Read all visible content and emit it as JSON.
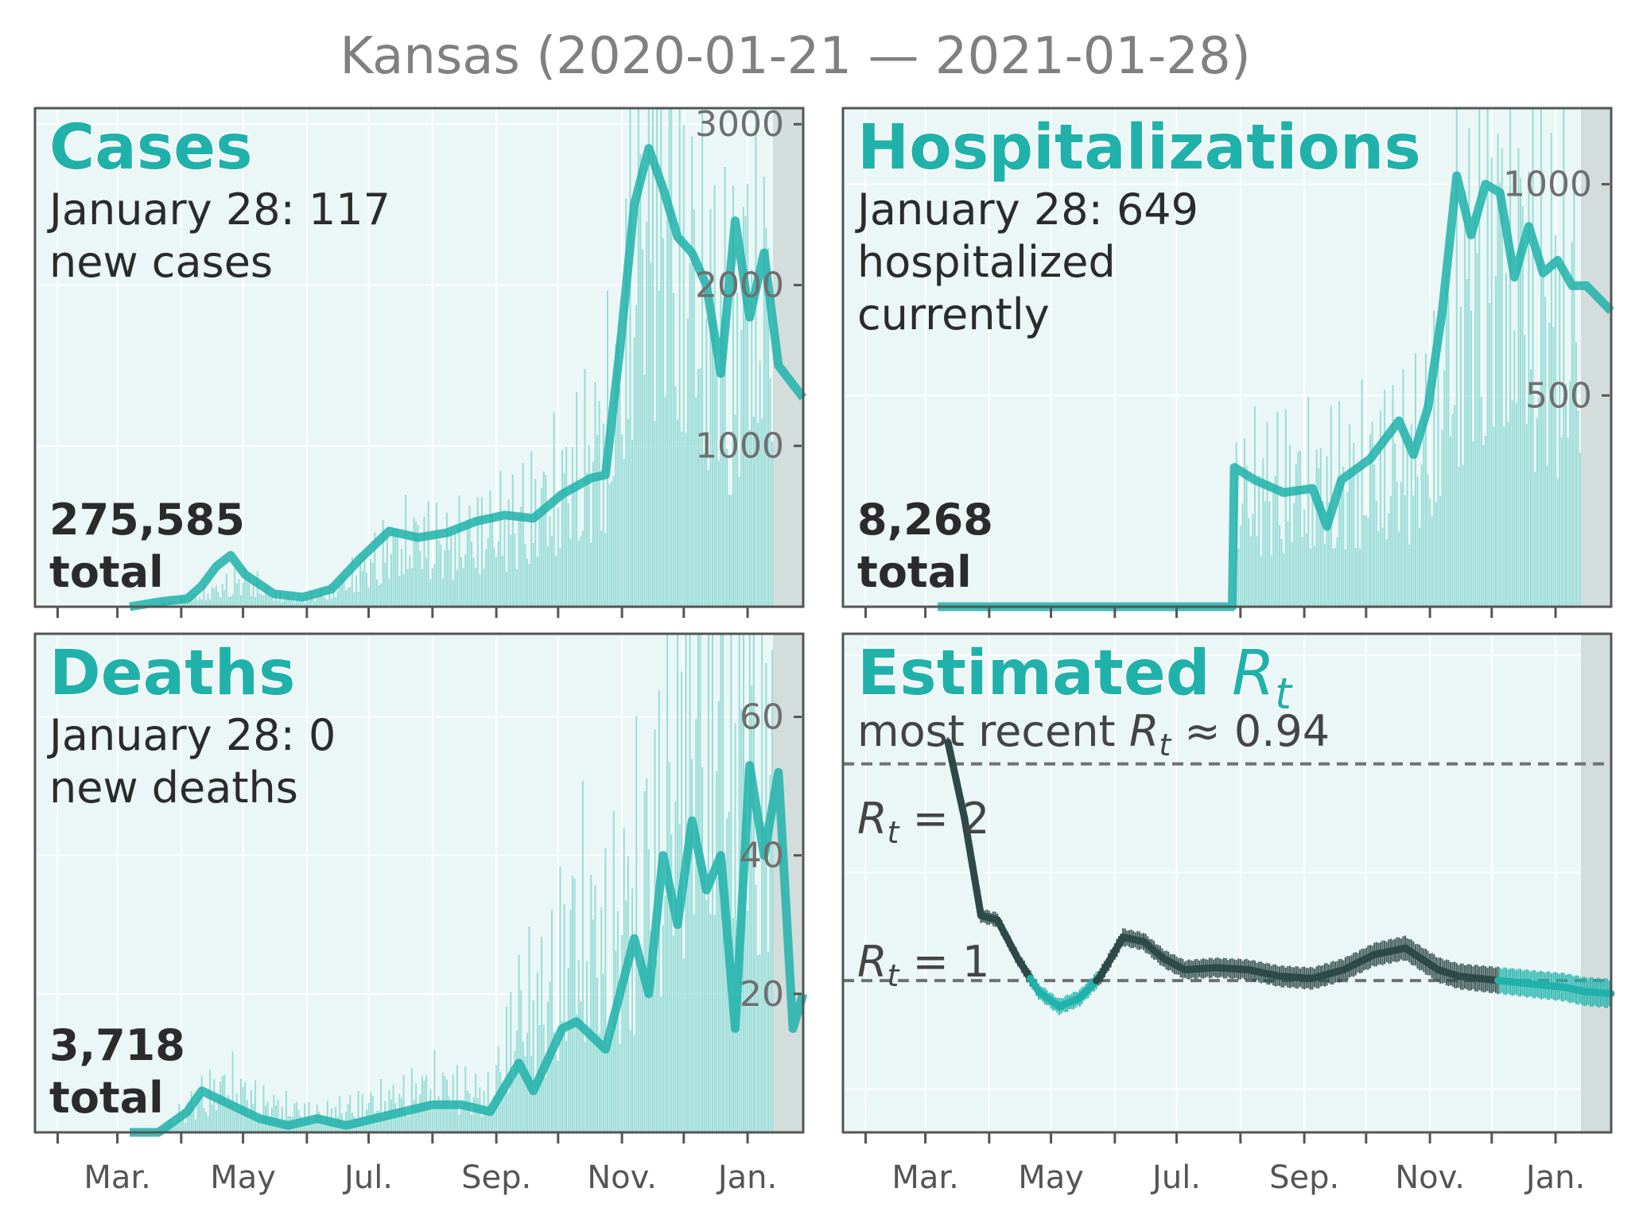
{
  "title": "Kansas (2020-01-21 — 2021-01-28)",
  "colors": {
    "accent": "#20b2aa",
    "bar": "#7fd3cc",
    "panel_bg": "#eaf7f6",
    "grid": "#ffffff",
    "frame": "#555555",
    "shade": "#d3dddb",
    "rt_dark": "#2e4a48",
    "ref_line": "#707070"
  },
  "x_ticks": [
    "Mar.",
    "May",
    "Jul.",
    "Sep.",
    "Nov.",
    "Jan."
  ],
  "panels": {
    "cases": {
      "title": "Cases",
      "date_line": "January 28: 117",
      "sub_line": "new cases",
      "total_value": "275,585",
      "total_label": "total"
    },
    "hosp": {
      "title": "Hospitalizations",
      "date_line": "January 28: 649",
      "sub_line1": "hospitalized",
      "sub_line2": "currently",
      "total_value": "8,268",
      "total_label": "total"
    },
    "deaths": {
      "title": "Deaths",
      "date_line": "January 28: 0",
      "sub_line": "new deaths",
      "total_value": "3,718",
      "total_label": "total"
    },
    "rt": {
      "title": "Estimated",
      "title_symbol": "R",
      "title_subscript": "t",
      "sub_prefix": "most recent ",
      "sub_symbol": "R",
      "sub_subscript": "t",
      "sub_suffix": " ≈ 0.94",
      "ref2_symbol": "R",
      "ref2_subscript": "t",
      "ref2_suffix": " = 2",
      "ref1_symbol": "R",
      "ref1_subscript": "t",
      "ref1_suffix": " = 1"
    }
  },
  "chart_data": [
    {
      "type": "bar",
      "panel": "cases",
      "title": "Cases",
      "x_range": [
        "2020-01-21",
        "2021-01-28"
      ],
      "ylim": [
        0,
        3100
      ],
      "y_ticks": [
        "1000",
        "2000",
        "3000"
      ],
      "y_tick_values": [
        1000,
        2000,
        3000
      ],
      "series": [
        {
          "kind": "daily_bars",
          "x": [
            "2020-03-07",
            "2020-03-21",
            "2020-04-04",
            "2020-04-18",
            "2020-05-02",
            "2020-05-16",
            "2020-05-30",
            "2020-06-13",
            "2020-06-27",
            "2020-07-11",
            "2020-07-25",
            "2020-08-08",
            "2020-08-22",
            "2020-09-05",
            "2020-09-19",
            "2020-10-03",
            "2020-10-17",
            "2020-10-31",
            "2020-11-07",
            "2020-11-14",
            "2020-11-21",
            "2020-11-28",
            "2020-12-05",
            "2020-12-12",
            "2020-12-19",
            "2020-12-26",
            "2021-01-02",
            "2021-01-09",
            "2021-01-16",
            "2021-01-23",
            "2021-01-28"
          ],
          "y": [
            0,
            20,
            60,
            120,
            200,
            80,
            60,
            110,
            250,
            420,
            500,
            450,
            520,
            600,
            700,
            850,
            1100,
            1500,
            2800,
            3200,
            3400,
            2600,
            2400,
            2200,
            2100,
            1800,
            2600,
            2300,
            1900,
            1600,
            117
          ]
        },
        {
          "kind": "7-day average",
          "x": [
            "2020-03-07",
            "2020-03-21",
            "2020-04-04",
            "2020-04-11",
            "2020-04-18",
            "2020-04-25",
            "2020-05-02",
            "2020-05-16",
            "2020-05-30",
            "2020-06-13",
            "2020-06-27",
            "2020-07-11",
            "2020-07-25",
            "2020-08-08",
            "2020-08-22",
            "2020-09-05",
            "2020-09-19",
            "2020-10-03",
            "2020-10-17",
            "2020-10-24",
            "2020-10-31",
            "2020-11-07",
            "2020-11-14",
            "2020-11-21",
            "2020-11-28",
            "2020-12-05",
            "2020-12-12",
            "2020-12-19",
            "2020-12-26",
            "2021-01-02",
            "2021-01-09",
            "2021-01-16",
            "2021-01-28"
          ],
          "y": [
            0,
            30,
            50,
            130,
            250,
            320,
            200,
            80,
            60,
            110,
            300,
            470,
            430,
            460,
            530,
            570,
            550,
            700,
            800,
            820,
            1600,
            2500,
            2850,
            2600,
            2300,
            2200,
            2000,
            1450,
            2400,
            1800,
            2200,
            1500,
            1300
          ]
        }
      ]
    },
    {
      "type": "bar",
      "panel": "hospitalizations",
      "title": "Hospitalizations",
      "x_range": [
        "2020-01-21",
        "2021-01-28"
      ],
      "ylim": [
        0,
        1180
      ],
      "y_ticks": [
        "500",
        "1000"
      ],
      "y_tick_values": [
        500,
        1000
      ],
      "series": [
        {
          "kind": "daily_bars",
          "x": [
            "2020-07-29",
            "2020-08-08",
            "2020-08-22",
            "2020-09-05",
            "2020-09-19",
            "2020-10-03",
            "2020-10-17",
            "2020-10-31",
            "2020-11-07",
            "2020-11-14",
            "2020-11-21",
            "2020-11-28",
            "2020-12-05",
            "2020-12-12",
            "2020-12-19",
            "2020-12-26",
            "2021-01-02",
            "2021-01-09",
            "2021-01-16",
            "2021-01-28"
          ],
          "y": [
            300,
            330,
            340,
            330,
            350,
            370,
            400,
            460,
            600,
            800,
            950,
            1050,
            1000,
            980,
            900,
            880,
            850,
            800,
            760,
            649
          ]
        },
        {
          "kind": "7-day average",
          "x": [
            "2020-03-07",
            "2020-07-28",
            "2020-07-29",
            "2020-08-08",
            "2020-08-22",
            "2020-09-05",
            "2020-09-12",
            "2020-09-19",
            "2020-10-03",
            "2020-10-17",
            "2020-10-24",
            "2020-10-31",
            "2020-11-07",
            "2020-11-14",
            "2020-11-21",
            "2020-11-28",
            "2020-12-05",
            "2020-12-12",
            "2020-12-19",
            "2020-12-26",
            "2021-01-02",
            "2021-01-09",
            "2021-01-16",
            "2021-01-28"
          ],
          "y": [
            0,
            0,
            330,
            300,
            270,
            280,
            190,
            300,
            350,
            440,
            360,
            470,
            700,
            1020,
            880,
            1000,
            980,
            780,
            900,
            790,
            820,
            760,
            760,
            700
          ]
        }
      ]
    },
    {
      "type": "bar",
      "panel": "deaths",
      "title": "Deaths",
      "x_range": [
        "2020-01-21",
        "2021-01-28"
      ],
      "ylim": [
        0,
        72
      ],
      "y_ticks": [
        "20",
        "40",
        "60"
      ],
      "y_tick_values": [
        20,
        40,
        60
      ],
      "series": [
        {
          "kind": "daily_bars",
          "x": [
            "2020-03-21",
            "2020-04-11",
            "2020-04-25",
            "2020-05-09",
            "2020-05-23",
            "2020-06-06",
            "2020-06-20",
            "2020-07-04",
            "2020-07-18",
            "2020-08-01",
            "2020-08-15",
            "2020-08-29",
            "2020-09-12",
            "2020-09-26",
            "2020-10-10",
            "2020-10-24",
            "2020-11-07",
            "2020-11-21",
            "2020-12-05",
            "2020-12-19",
            "2021-01-02",
            "2021-01-16",
            "2021-01-28"
          ],
          "y": [
            0,
            6,
            8,
            5,
            4,
            3,
            4,
            5,
            6,
            8,
            7,
            6,
            20,
            22,
            35,
            30,
            40,
            50,
            80,
            70,
            75,
            60,
            0
          ]
        },
        {
          "kind": "7-day average",
          "x": [
            "2020-03-07",
            "2020-03-21",
            "2020-04-04",
            "2020-04-11",
            "2020-04-25",
            "2020-05-09",
            "2020-05-23",
            "2020-06-06",
            "2020-06-20",
            "2020-07-04",
            "2020-07-18",
            "2020-08-01",
            "2020-08-15",
            "2020-08-29",
            "2020-09-12",
            "2020-09-19",
            "2020-10-03",
            "2020-10-10",
            "2020-10-24",
            "2020-10-31",
            "2020-11-07",
            "2020-11-14",
            "2020-11-21",
            "2020-11-28",
            "2020-12-05",
            "2020-12-12",
            "2020-12-19",
            "2020-12-26",
            "2021-01-02",
            "2021-01-09",
            "2021-01-16",
            "2021-01-23",
            "2021-01-28"
          ],
          "y": [
            0,
            0,
            3,
            6,
            4,
            2,
            1,
            2,
            1,
            2,
            3,
            4,
            4,
            3,
            10,
            6,
            15,
            16,
            12,
            20,
            28,
            20,
            40,
            30,
            45,
            35,
            40,
            15,
            53,
            40,
            52,
            15,
            20
          ]
        }
      ]
    },
    {
      "type": "line",
      "panel": "rt",
      "title": "Estimated R_t",
      "x_range": [
        "2020-01-21",
        "2021-01-28"
      ],
      "ylim": [
        0.3,
        2.6
      ],
      "reference_lines": [
        1,
        2
      ],
      "series": [
        {
          "name": "R_t",
          "x": [
            "2020-03-12",
            "2020-03-20",
            "2020-03-28",
            "2020-04-05",
            "2020-04-15",
            "2020-04-25",
            "2020-05-05",
            "2020-05-15",
            "2020-05-25",
            "2020-06-05",
            "2020-06-15",
            "2020-06-25",
            "2020-07-05",
            "2020-07-20",
            "2020-08-05",
            "2020-08-20",
            "2020-09-05",
            "2020-09-20",
            "2020-10-05",
            "2020-10-20",
            "2020-10-28",
            "2020-11-05",
            "2020-11-15",
            "2020-11-25",
            "2020-12-05",
            "2020-12-15",
            "2020-12-25",
            "2021-01-05",
            "2021-01-15",
            "2021-01-28"
          ],
          "y": [
            2.1,
            1.75,
            1.3,
            1.28,
            1.1,
            0.95,
            0.88,
            0.92,
            1.02,
            1.2,
            1.18,
            1.1,
            1.05,
            1.06,
            1.05,
            1.02,
            1.01,
            1.05,
            1.12,
            1.15,
            1.1,
            1.05,
            1.02,
            1.01,
            1.0,
            0.99,
            0.98,
            0.97,
            0.95,
            0.94
          ]
        }
      ]
    }
  ]
}
